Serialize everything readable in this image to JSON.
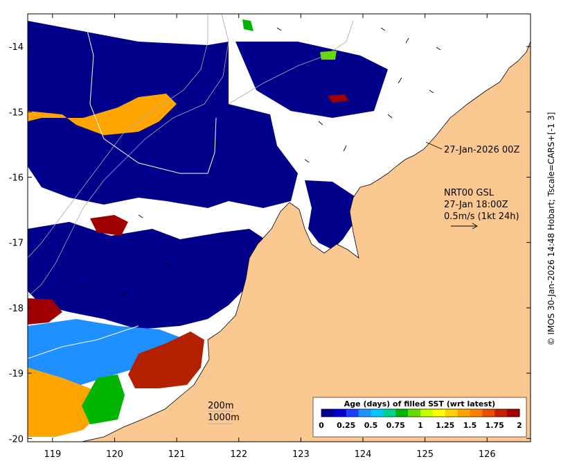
{
  "map": {
    "land_color": "#fcc891",
    "ocean_color": "#ffffff",
    "coast_color": "#000000",
    "longitudes": [
      "119",
      "120",
      "121",
      "122",
      "123",
      "124",
      "125",
      "126"
    ],
    "latitudes": [
      "-14",
      "-15",
      "-16",
      "-17",
      "-18",
      "-19",
      "-20"
    ],
    "lon_range": [
      118.6,
      126.7
    ],
    "lat_range": [
      -20.05,
      -13.5
    ]
  },
  "annotations": {
    "sst_time": "27-Jan-2026 00Z",
    "product": "NRT00 GSL",
    "current_time": "27-Jan 18:00Z",
    "arrow_scale": "0.5m/s (1kt 24h)",
    "contour_label_1": "200m",
    "contour_label_2": "1000m"
  },
  "colorbar": {
    "title": "Age (days) of filled SST (wrt latest)",
    "ticks": [
      "0",
      "0.25",
      "0.5",
      "0.75",
      "1",
      "1.25",
      "1.5",
      "1.75",
      "2"
    ],
    "colors": [
      "#00008b",
      "#0000cd",
      "#1e3cff",
      "#1e90ff",
      "#00c8ff",
      "#00d28c",
      "#00b400",
      "#64dc00",
      "#c8ff00",
      "#ffff00",
      "#ffd200",
      "#ffa500",
      "#ff7f00",
      "#e65000",
      "#c81e00",
      "#a00000"
    ]
  },
  "credit": "© IMOS 30-Jan-2026 14:48 Hobart; Tscale=CARS+[-1 3]"
}
